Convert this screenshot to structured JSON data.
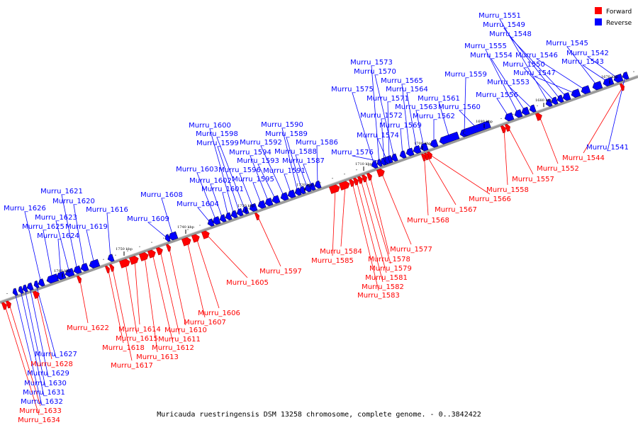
{
  "caption": "Muricauda ruestringensis DSM 13258 chromosome, complete genome. - 0..3842422",
  "legend": [
    {
      "label": "Forward",
      "color": "#ff0000"
    },
    {
      "label": "Reverse",
      "color": "#0000ff"
    }
  ],
  "colors": {
    "forward": "#ff0000",
    "reverse": "#0000ff",
    "backbone": "#9a9a9a"
  },
  "ticks": [
    "1670 kbp",
    "1680 kbp",
    "1690 kbp",
    "1700 kbp",
    "1710 kbp",
    "1720 kbp",
    "1730 kbp",
    "1740 kbp",
    "1750 kbp",
    "1760 kbp"
  ],
  "genes": [
    {
      "name": "Murru_1541",
      "strand": "reverse"
    },
    {
      "name": "Murru_1542",
      "strand": "reverse"
    },
    {
      "name": "Murru_1543",
      "strand": "reverse"
    },
    {
      "name": "Murru_1544",
      "strand": "forward"
    },
    {
      "name": "Murru_1545",
      "strand": "reverse"
    },
    {
      "name": "Murru_1546",
      "strand": "reverse"
    },
    {
      "name": "Murru_1547",
      "strand": "reverse"
    },
    {
      "name": "Murru_1548",
      "strand": "reverse"
    },
    {
      "name": "Murru_1549",
      "strand": "reverse"
    },
    {
      "name": "Murru_1550",
      "strand": "reverse"
    },
    {
      "name": "Murru_1551",
      "strand": "reverse"
    },
    {
      "name": "Murru_1552",
      "strand": "forward"
    },
    {
      "name": "Murru_1553",
      "strand": "reverse"
    },
    {
      "name": "Murru_1554",
      "strand": "reverse"
    },
    {
      "name": "Murru_1555",
      "strand": "reverse"
    },
    {
      "name": "Murru_1556",
      "strand": "reverse"
    },
    {
      "name": "Murru_1557",
      "strand": "forward"
    },
    {
      "name": "Murru_1558",
      "strand": "forward"
    },
    {
      "name": "Murru_1559",
      "strand": "reverse"
    },
    {
      "name": "Murru_1560",
      "strand": "reverse"
    },
    {
      "name": "Murru_1561",
      "strand": "reverse"
    },
    {
      "name": "Murru_1562",
      "strand": "reverse"
    },
    {
      "name": "Murru_1563",
      "strand": "reverse"
    },
    {
      "name": "Murru_1564",
      "strand": "reverse"
    },
    {
      "name": "Murru_1565",
      "strand": "reverse"
    },
    {
      "name": "Murru_1566",
      "strand": "forward"
    },
    {
      "name": "Murru_1567",
      "strand": "forward"
    },
    {
      "name": "Murru_1568",
      "strand": "forward"
    },
    {
      "name": "Murru_1569",
      "strand": "reverse"
    },
    {
      "name": "Murru_1570",
      "strand": "reverse"
    },
    {
      "name": "Murru_1571",
      "strand": "reverse"
    },
    {
      "name": "Murru_1572",
      "strand": "reverse"
    },
    {
      "name": "Murru_1573",
      "strand": "reverse"
    },
    {
      "name": "Murru_1574",
      "strand": "reverse"
    },
    {
      "name": "Murru_1575",
      "strand": "reverse"
    },
    {
      "name": "Murru_1576",
      "strand": "reverse"
    },
    {
      "name": "Murru_1577",
      "strand": "forward"
    },
    {
      "name": "Murru_1578",
      "strand": "forward"
    },
    {
      "name": "Murru_1579",
      "strand": "forward"
    },
    {
      "name": "Murru_1581",
      "strand": "forward"
    },
    {
      "name": "Murru_1582",
      "strand": "forward"
    },
    {
      "name": "Murru_1583",
      "strand": "forward"
    },
    {
      "name": "Murru_1584",
      "strand": "forward"
    },
    {
      "name": "Murru_1585",
      "strand": "forward"
    },
    {
      "name": "Murru_1586",
      "strand": "reverse"
    },
    {
      "name": "Murru_1587",
      "strand": "reverse"
    },
    {
      "name": "Murru_1588",
      "strand": "reverse"
    },
    {
      "name": "Murru_1589",
      "strand": "reverse"
    },
    {
      "name": "Murru_1590",
      "strand": "reverse"
    },
    {
      "name": "Murru_1591",
      "strand": "reverse"
    },
    {
      "name": "Murru_1592",
      "strand": "reverse"
    },
    {
      "name": "Murru_1593",
      "strand": "reverse"
    },
    {
      "name": "Murru_1594",
      "strand": "reverse"
    },
    {
      "name": "Murru_1595",
      "strand": "reverse"
    },
    {
      "name": "Murru_1596",
      "strand": "reverse"
    },
    {
      "name": "Murru_1597",
      "strand": "forward"
    },
    {
      "name": "Murru_1598",
      "strand": "reverse"
    },
    {
      "name": "Murru_1599",
      "strand": "reverse"
    },
    {
      "name": "Murru_1600",
      "strand": "reverse"
    },
    {
      "name": "Murru_1601",
      "strand": "reverse"
    },
    {
      "name": "Murru_1602",
      "strand": "reverse"
    },
    {
      "name": "Murru_1603",
      "strand": "reverse"
    },
    {
      "name": "Murru_1604",
      "strand": "reverse"
    },
    {
      "name": "Murru_1605",
      "strand": "forward"
    },
    {
      "name": "Murru_1606",
      "strand": "forward"
    },
    {
      "name": "Murru_1607",
      "strand": "forward"
    },
    {
      "name": "Murru_1608",
      "strand": "reverse"
    },
    {
      "name": "Murru_1609",
      "strand": "reverse"
    },
    {
      "name": "Murru_1610",
      "strand": "forward"
    },
    {
      "name": "Murru_1611",
      "strand": "forward"
    },
    {
      "name": "Murru_1612",
      "strand": "forward"
    },
    {
      "name": "Murru_1613",
      "strand": "forward"
    },
    {
      "name": "Murru_1614",
      "strand": "forward"
    },
    {
      "name": "Murru_1615",
      "strand": "forward"
    },
    {
      "name": "Murru_1616",
      "strand": "reverse"
    },
    {
      "name": "Murru_1617",
      "strand": "forward"
    },
    {
      "name": "Murru_1618",
      "strand": "forward"
    },
    {
      "name": "Murru_1619",
      "strand": "reverse"
    },
    {
      "name": "Murru_1620",
      "strand": "reverse"
    },
    {
      "name": "Murru_1621",
      "strand": "reverse"
    },
    {
      "name": "Murru_1622",
      "strand": "forward"
    },
    {
      "name": "Murru_1623",
      "strand": "reverse"
    },
    {
      "name": "Murru_1624",
      "strand": "reverse"
    },
    {
      "name": "Murru_1625",
      "strand": "reverse"
    },
    {
      "name": "Murru_1626",
      "strand": "reverse"
    },
    {
      "name": "Murru_1627",
      "strand": "reverse"
    },
    {
      "name": "Murru_1628",
      "strand": "forward"
    },
    {
      "name": "Murru_1629",
      "strand": "reverse"
    },
    {
      "name": "Murru_1630",
      "strand": "reverse"
    },
    {
      "name": "Murru_1631",
      "strand": "reverse"
    },
    {
      "name": "Murru_1632",
      "strand": "reverse"
    },
    {
      "name": "Murru_1633",
      "strand": "forward"
    },
    {
      "name": "Murru_1634",
      "strand": "forward"
    }
  ]
}
